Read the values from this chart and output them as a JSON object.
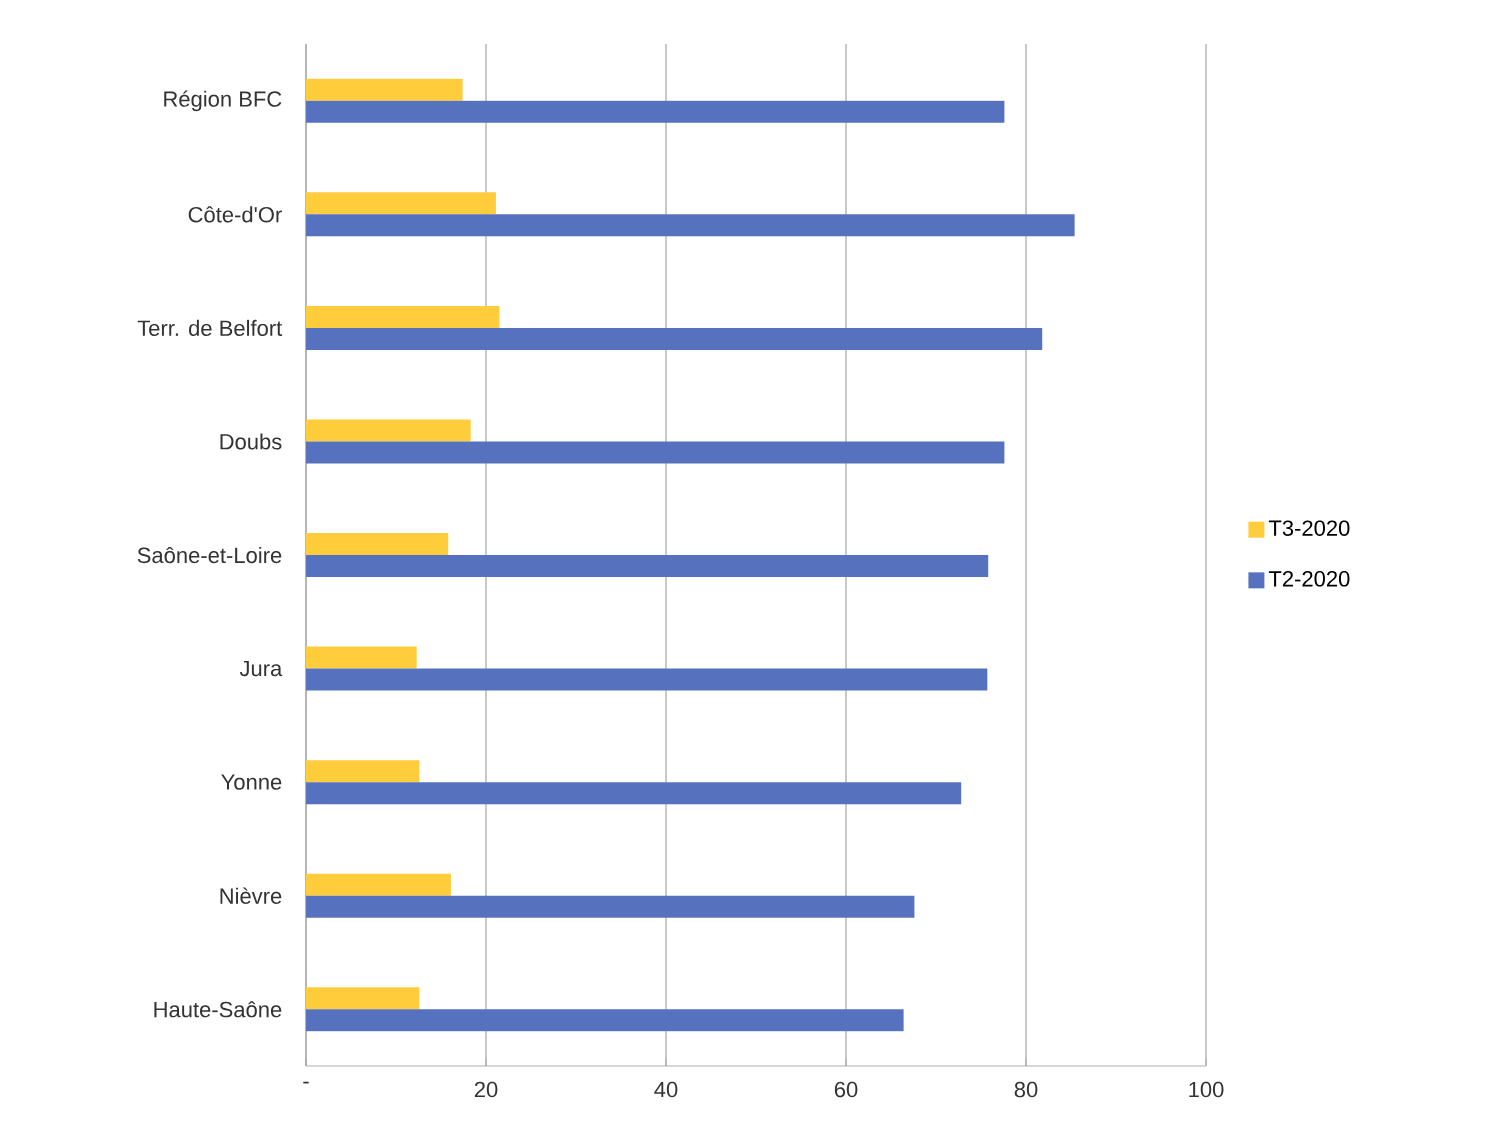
{
  "chart_data": {
    "type": "bar",
    "orientation": "horizontal",
    "categories": [
      "Région BFC",
      "Côte-d'Or",
      "Terr. de Belfort",
      "Doubs",
      "Saône-et-Loire",
      "Jura",
      "Yonne",
      "Nièvre",
      "Haute-Saône"
    ],
    "series": [
      {
        "name": "T3-2020",
        "color": "#ffcd3c",
        "values": [
          17.4,
          21.1,
          21.5,
          18.3,
          15.8,
          12.3,
          12.6,
          16.1,
          12.6
        ]
      },
      {
        "name": "T2-2020",
        "color": "#5672be",
        "values": [
          77.6,
          85.4,
          81.8,
          77.6,
          75.8,
          75.7,
          72.8,
          67.6,
          66.4
        ]
      }
    ],
    "xlim": [
      0,
      100
    ],
    "xticks": [
      {
        "value": 0,
        "label": "-"
      },
      20,
      40,
      60,
      80,
      100
    ],
    "grid": "x",
    "legend": "right"
  }
}
